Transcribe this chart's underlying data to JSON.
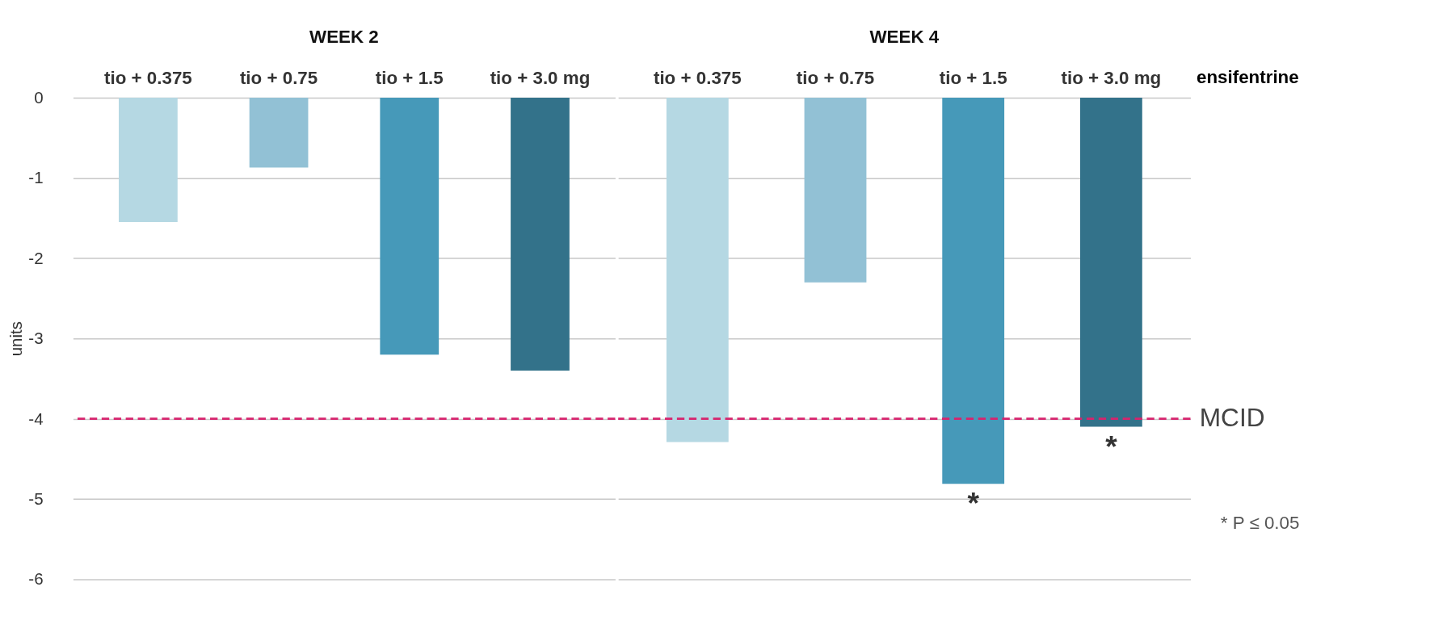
{
  "chart_data": [
    {
      "type": "bar",
      "title": "WEEK 2",
      "ylabel": "units",
      "categories": [
        "tio + 0.375",
        "tio + 0.75",
        "tio + 1.5",
        "tio + 3.0 mg"
      ],
      "values": [
        -1.55,
        -0.87,
        -3.2,
        -3.4
      ],
      "colors": [
        "#b5d8e3",
        "#92c1d5",
        "#4699b9",
        "#33728a"
      ],
      "ylim": [
        -6,
        0
      ],
      "yticks": [
        -6,
        -5,
        -4,
        -3,
        -2,
        -1,
        0
      ],
      "grid": "y",
      "ref_lines": [
        {
          "axis": "y",
          "value": -4,
          "label": null,
          "color": "#d6246e",
          "line_style": "dashed"
        }
      ]
    },
    {
      "type": "bar",
      "title": "WEEK 4",
      "categories": [
        "tio + 0.375",
        "tio + 0.75",
        "tio + 1.5",
        "tio + 3.0 mg"
      ],
      "values": [
        -4.29,
        -2.3,
        -4.81,
        -4.1
      ],
      "colors": [
        "#b5d8e3",
        "#92c1d5",
        "#4699b9",
        "#33728a"
      ],
      "ylim": [
        -6,
        0
      ],
      "yticks": [
        -6,
        -5,
        -4,
        -3,
        -2,
        -1,
        0
      ],
      "grid": "y",
      "tick_labels": "x",
      "ref_lines": [
        {
          "axis": "y",
          "value": -4,
          "label": "MCID",
          "color": "#d6246e",
          "line_style": "dashed"
        }
      ],
      "annotations": [
        "ensifentrine",
        {
          "text": "*",
          "x": "tio + 1.5",
          "y": -4.81
        },
        {
          "text": "*",
          "x": "tio + 3.0 mg",
          "y": -4.1
        },
        "* P ≤ 0.05"
      ]
    }
  ]
}
